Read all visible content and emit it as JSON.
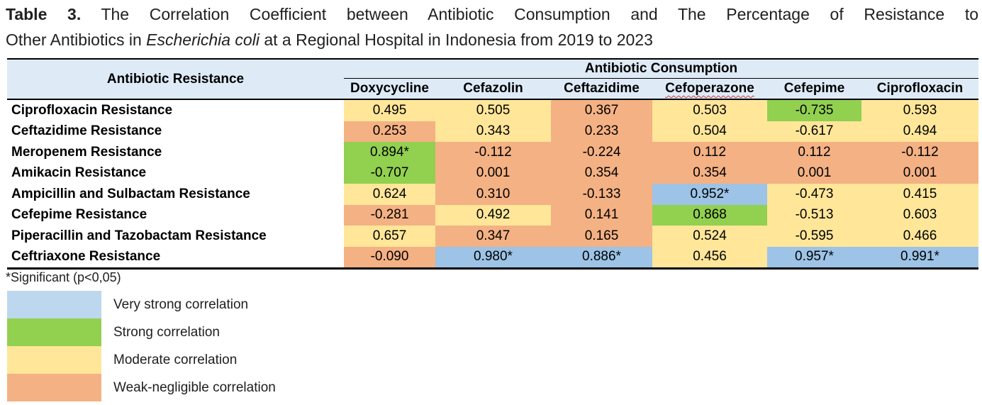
{
  "title": {
    "line1_bold": "Table 3.",
    "line1_rest": "The Correlation Coefficient between Antibiotic Consumption and The Percentage of Resistance to",
    "line2_pre": "Other Antibiotics in",
    "line2_italic": "Escherichia coli",
    "line2_post": "at a Regional Hospital in Indonesia from 2019 to 2023"
  },
  "table": {
    "row_header": "Antibiotic Resistance",
    "col_group_header": "Antibiotic Consumption",
    "columns": [
      {
        "label": "Doxycycline"
      },
      {
        "label": "Cefazolin"
      },
      {
        "label": "Ceftazidime"
      },
      {
        "label": "Cefoperazone",
        "spellcheck_underline": true
      },
      {
        "label": "Cefepime"
      },
      {
        "label": "Ciprofloxacin"
      }
    ],
    "rows": [
      {
        "label": "Ciprofloxacin Resistance",
        "cells": [
          {
            "value": "0.495",
            "level": "moderate"
          },
          {
            "value": "0.505",
            "level": "moderate"
          },
          {
            "value": "0.367",
            "level": "weak"
          },
          {
            "value": "0.503",
            "level": "moderate"
          },
          {
            "value": "-0.735",
            "level": "strong"
          },
          {
            "value": "0.593",
            "level": "moderate"
          }
        ]
      },
      {
        "label": "Ceftazidime Resistance",
        "cells": [
          {
            "value": "0.253",
            "level": "weak"
          },
          {
            "value": "0.343",
            "level": "moderate"
          },
          {
            "value": "0.233",
            "level": "weak"
          },
          {
            "value": "0.504",
            "level": "moderate"
          },
          {
            "value": "-0.617",
            "level": "moderate"
          },
          {
            "value": "0.494",
            "level": "moderate"
          }
        ]
      },
      {
        "label": "Meropenem Resistance",
        "cells": [
          {
            "value": "0.894*",
            "level": "strong"
          },
          {
            "value": "-0.112",
            "level": "weak"
          },
          {
            "value": "-0.224",
            "level": "weak"
          },
          {
            "value": "0.112",
            "level": "weak"
          },
          {
            "value": "0.112",
            "level": "weak"
          },
          {
            "value": "-0.112",
            "level": "weak"
          }
        ]
      },
      {
        "label": "Amikacin Resistance",
        "cells": [
          {
            "value": "-0.707",
            "level": "strong"
          },
          {
            "value": "0.001",
            "level": "weak"
          },
          {
            "value": "0.354",
            "level": "weak"
          },
          {
            "value": "0.354",
            "level": "weak"
          },
          {
            "value": "0.001",
            "level": "weak"
          },
          {
            "value": "0.001",
            "level": "weak"
          }
        ]
      },
      {
        "label": "Ampicillin and Sulbactam Resistance",
        "cells": [
          {
            "value": "0.624",
            "level": "moderate"
          },
          {
            "value": "0.310",
            "level": "weak"
          },
          {
            "value": "-0.133",
            "level": "weak"
          },
          {
            "value": "0.952*",
            "level": "very-strong"
          },
          {
            "value": "-0.473",
            "level": "moderate"
          },
          {
            "value": "0.415",
            "level": "moderate"
          }
        ]
      },
      {
        "label": "Cefepime Resistance",
        "cells": [
          {
            "value": "-0.281",
            "level": "weak"
          },
          {
            "value": "0.492",
            "level": "moderate"
          },
          {
            "value": "0.141",
            "level": "weak"
          },
          {
            "value": "0.868",
            "level": "strong"
          },
          {
            "value": "-0.513",
            "level": "moderate"
          },
          {
            "value": "0.603",
            "level": "moderate"
          }
        ]
      },
      {
        "label": "Piperacillin and Tazobactam Resistance",
        "cells": [
          {
            "value": "0.657",
            "level": "moderate"
          },
          {
            "value": "0.347",
            "level": "weak"
          },
          {
            "value": "0.165",
            "level": "weak"
          },
          {
            "value": "0.524",
            "level": "moderate"
          },
          {
            "value": "-0.595",
            "level": "moderate"
          },
          {
            "value": "0.466",
            "level": "moderate"
          }
        ]
      },
      {
        "label": "Ceftriaxone Resistance",
        "cells": [
          {
            "value": "-0.090",
            "level": "weak"
          },
          {
            "value": "0.980*",
            "level": "very-strong"
          },
          {
            "value": "0.886*",
            "level": "very-strong"
          },
          {
            "value": "0.456",
            "level": "moderate"
          },
          {
            "value": "0.957*",
            "level": "very-strong"
          },
          {
            "value": "0.991*",
            "level": "very-strong"
          }
        ]
      }
    ]
  },
  "footnote": "*Significant (p<0,05)",
  "legend": {
    "items": [
      {
        "label": "Very strong correlation",
        "level": "very-strong",
        "color": "#BDD7EE"
      },
      {
        "label": "Strong correlation",
        "level": "strong",
        "color": "#92D050"
      },
      {
        "label": "Moderate correlation",
        "level": "moderate",
        "color": "#FFE699"
      },
      {
        "label": "Weak-negligible correlation",
        "level": "weak",
        "color": "#F4B183"
      }
    ]
  },
  "colors": {
    "header_bg": "#DEEBF7",
    "cell_very_strong": "#9DC3E6",
    "cell_strong": "#92D050",
    "cell_moderate": "#FFE699",
    "cell_weak": "#F4B183",
    "spellcheck_underline": "#d13438",
    "border": "#000000"
  }
}
